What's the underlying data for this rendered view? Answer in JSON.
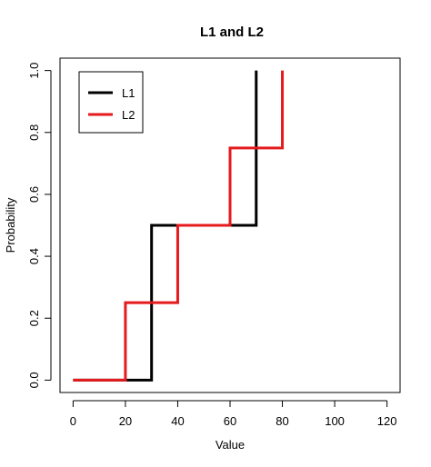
{
  "chart_data": {
    "type": "line",
    "step": "post",
    "title": "L1 and L2",
    "xlabel": "Value",
    "ylabel": "Probability",
    "xlim": [
      -5,
      125
    ],
    "ylim": [
      -0.04,
      1.04
    ],
    "xticks": [
      0,
      20,
      40,
      60,
      80,
      100,
      120
    ],
    "yticks": [
      0.0,
      0.2,
      0.4,
      0.6,
      0.8,
      1.0
    ],
    "xtick_labels": [
      "0",
      "20",
      "40",
      "60",
      "80",
      "100",
      "120"
    ],
    "ytick_labels": [
      "0.0",
      "0.2",
      "0.4",
      "0.6",
      "0.8",
      "1.0"
    ],
    "grid": false,
    "legend_position": "top-left",
    "series": [
      {
        "name": "L1",
        "color": "#000000",
        "x": [
          0,
          30,
          70
        ],
        "y": [
          0.0,
          0.5,
          1.0
        ]
      },
      {
        "name": "L2",
        "color": "#e41a1c",
        "x": [
          0,
          20,
          40,
          60,
          80
        ],
        "y": [
          0.0,
          0.25,
          0.5,
          0.75,
          1.0
        ]
      }
    ]
  }
}
